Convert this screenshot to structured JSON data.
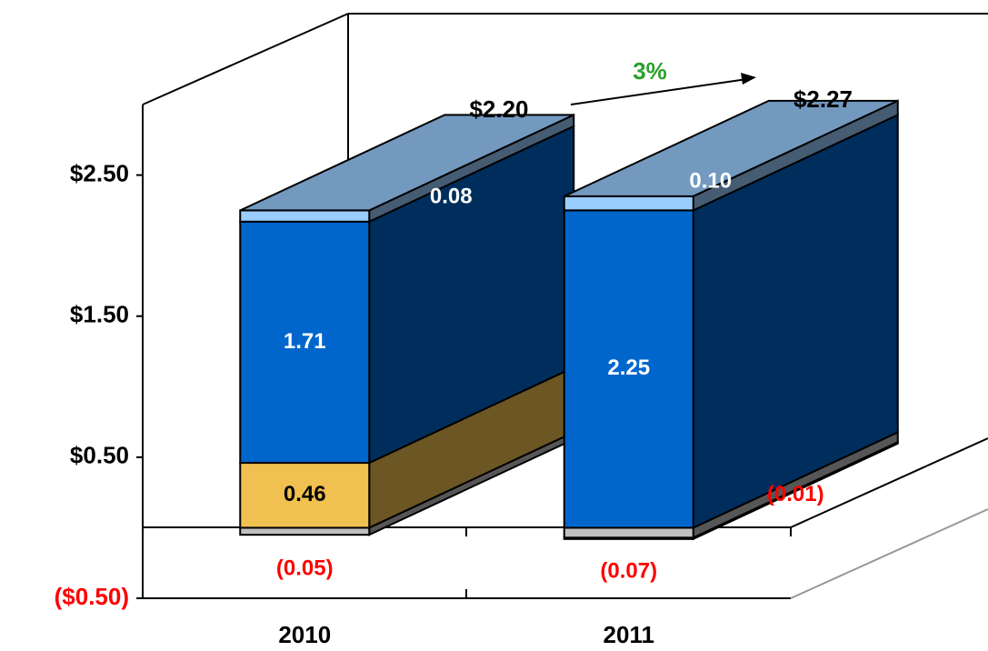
{
  "chart_data": {
    "type": "bar3d_stacked",
    "categories": [
      "2010",
      "2011"
    ],
    "series": [
      {
        "color": "#c0c0c0",
        "values": [
          -0.05,
          -0.07
        ],
        "value_labels": [
          "(0.05)",
          "(0.07)"
        ]
      },
      {
        "color": "#f0c050",
        "values": [
          0.46,
          -0.01
        ],
        "value_labels": [
          "0.46",
          "(0.01)"
        ]
      },
      {
        "color": "#0066cc",
        "values": [
          1.71,
          2.25
        ]
      },
      {
        "color": "#99ccff",
        "values": [
          0.08,
          0.1
        ],
        "value_labels": [
          "0.08",
          "0.10"
        ]
      }
    ],
    "totals": [
      2.2,
      2.27
    ],
    "total_labels": [
      "$2.20",
      "$2.27"
    ],
    "annotation": "3%",
    "ylim": [
      -0.5,
      3.0
    ],
    "yticks": [
      {
        "value": -0.5,
        "label": "($0.50)"
      },
      {
        "value": 0.5,
        "label": "$0.50"
      },
      {
        "value": 1.5,
        "label": "$1.50"
      },
      {
        "value": 2.5,
        "label": "$2.50"
      }
    ]
  }
}
